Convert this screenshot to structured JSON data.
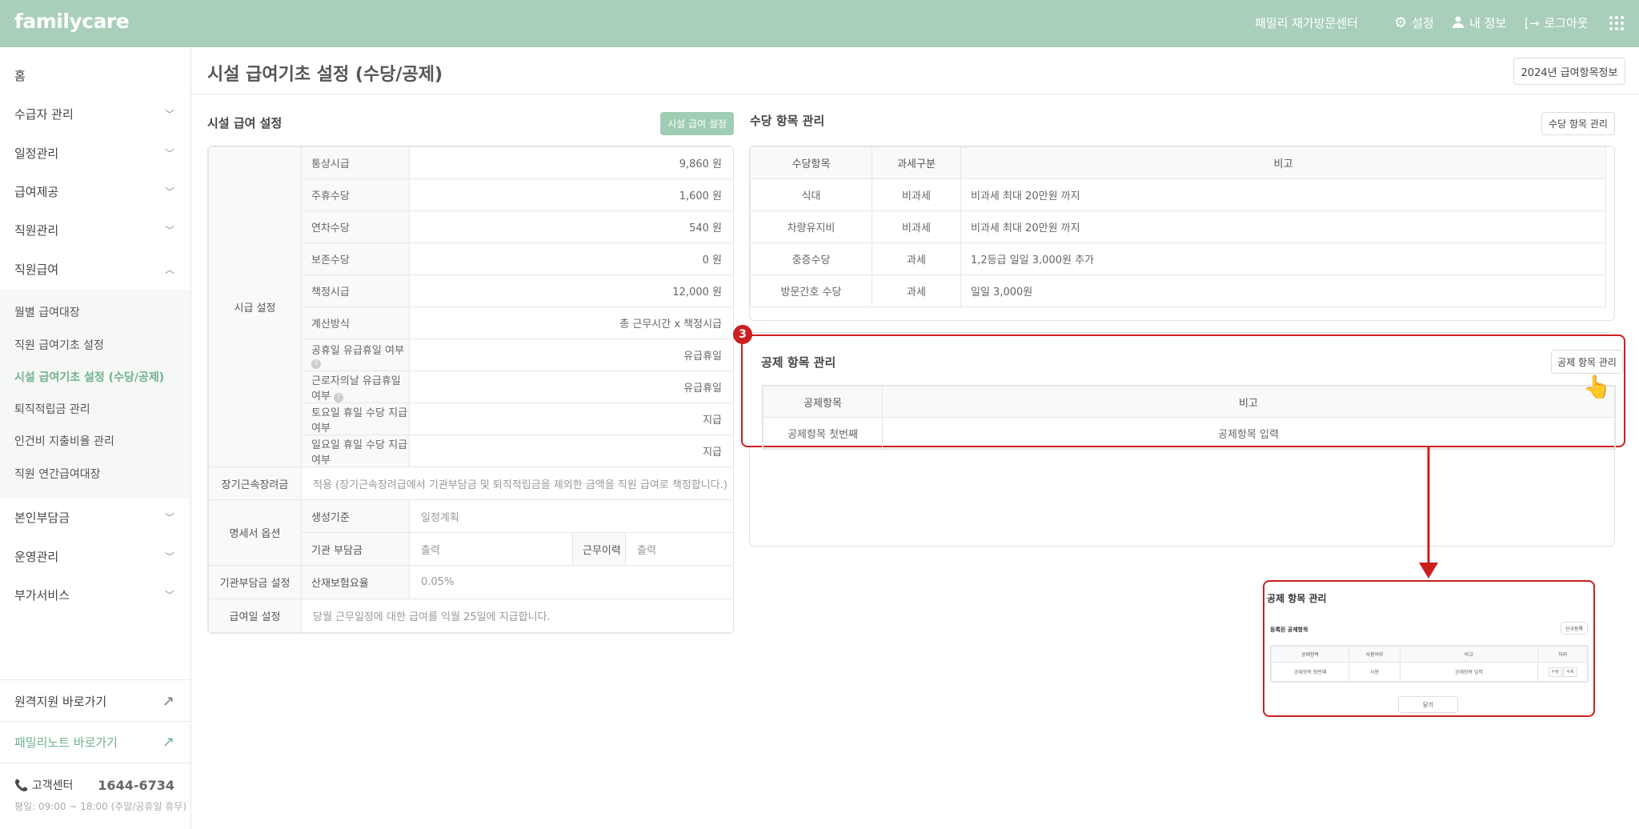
{
  "header": {
    "logo": "familycare",
    "center": "패밀리 재가방문센터",
    "settings": "설정",
    "myinfo": "내 정보",
    "logout": "로그아웃",
    "bg_color": "#a9cfbb"
  },
  "sidebar": {
    "items": [
      {
        "label": "홈",
        "chevron": ""
      },
      {
        "label": "수급자 관리",
        "chevron": "down"
      },
      {
        "label": "일정관리",
        "chevron": "down"
      },
      {
        "label": "급여제공",
        "chevron": "down"
      },
      {
        "label": "직원관리",
        "chevron": "down"
      },
      {
        "label": "직원급여",
        "chevron": "up"
      }
    ],
    "sub_items": [
      "월별 급여대장",
      "직원 급여기초 설정",
      "시설 급여기초 설정 (수당/공제)",
      "퇴직적립금 관리",
      "인건비 지출비율 관리",
      "직원 연간급여대장"
    ],
    "items_after": [
      {
        "label": "본인부담금"
      },
      {
        "label": "운영관리"
      },
      {
        "label": "부가서비스"
      }
    ],
    "remote": "원격지원 바로가기",
    "note": "패밀리노트 바로가기",
    "cs_label": "고객센터",
    "cs_phone": "1644-6734",
    "cs_hours": "평일: 09:00 ~ 18:00 (주말/공휴일 휴무)",
    "accent": "#6fb28e"
  },
  "page": {
    "title": "시설 급여기초 설정 (수당/공제)",
    "info_button": "2024년 급여항목정보"
  },
  "facility": {
    "title": "시설 급여 설정",
    "button": "시설 급여 설정",
    "group_label": "시급 설정",
    "rows": [
      {
        "label": "통상시급",
        "value": "9,860 원"
      },
      {
        "label": "주휴수당",
        "value": "1,600 원"
      },
      {
        "label": "연차수당",
        "value": "540 원"
      },
      {
        "label": "보존수당",
        "value": "0 원"
      },
      {
        "label": "책정시급",
        "value": "12,000 원"
      },
      {
        "label": "계산방식",
        "value": "총 근무시간 x 책정시급"
      },
      {
        "label": "공휴일 유급휴일 여부",
        "value": "유급휴일",
        "help": true
      },
      {
        "label": "근로자의날 유급휴일 여부",
        "value": "유급휴일",
        "help": true
      },
      {
        "label": "토요일 휴일 수당 지급 여부",
        "value": "지급"
      },
      {
        "label": "일요일 휴일 수당 지급 여부",
        "value": "지급"
      }
    ],
    "longterm": {
      "label": "장기근속장려금",
      "value": "적용 (장기근속장려급에서 기관부담금 및 퇴직적립금을 제외한 금액을 직원 급여로 책정합니다.)"
    },
    "statement": {
      "label": "명세서 옵션",
      "basis_label": "생성기준",
      "basis_value": "일정계획",
      "inst_label": "기관 부담금",
      "inst_value": "출력",
      "work_label": "근무이력",
      "work_value": "출력"
    },
    "inst_setting": {
      "label": "기관부담금 설정",
      "sub_label": "산재보험요율",
      "value": "0.05%"
    },
    "payday": {
      "label": "급여일 설정",
      "value": "당월 근무일정에 대한 급여를 익월 25일에 지급합니다."
    }
  },
  "allowance": {
    "title": "수당 항목 관리",
    "button": "수당 항목 관리",
    "headers": [
      "수당항목",
      "과세구분",
      "비고"
    ],
    "rows": [
      [
        "식대",
        "비과세",
        "비과세 최대 20만원 까지"
      ],
      [
        "차량유지비",
        "비과세",
        "비과세 최대 20만원 까지"
      ],
      [
        "중증수당",
        "과세",
        "1,2등급 일일 3,000원 추가"
      ],
      [
        "방문간호 수당",
        "과세",
        "일일 3,000원"
      ]
    ]
  },
  "deduction": {
    "badge": "3",
    "title": "공제 항목 관리",
    "button": "공제 항목 관리",
    "headers": [
      "공제항목",
      "비고"
    ],
    "rows": [
      [
        "공제항목 첫번째",
        "공제항목 입력"
      ]
    ],
    "highlight_color": "#cc1f1f"
  },
  "modal": {
    "title": "공제 항목 관리",
    "subtitle": "등록된 공제항목",
    "new_button": "신규등록",
    "headers": [
      "공제항목",
      "사용여부",
      "비고",
      "처리"
    ],
    "rows": [
      {
        "name": "공제항목 첫번째",
        "use": "사용",
        "note": "공제항목 입력",
        "edit": "수정",
        "delete": "삭제"
      }
    ],
    "close": "닫기"
  }
}
